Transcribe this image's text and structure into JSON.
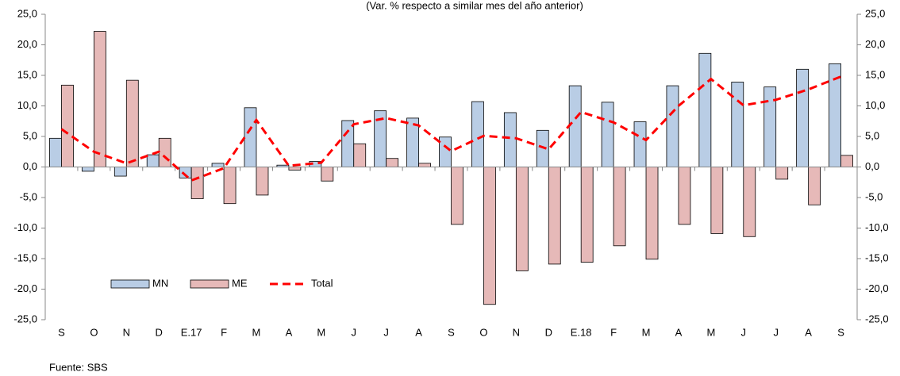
{
  "chart_data": {
    "type": "bar",
    "subtitle": "(Var. % respecto a similar mes del año anterior)",
    "source": "Fuente: SBS",
    "categories": [
      "S",
      "O",
      "N",
      "D",
      "E.17",
      "F",
      "M",
      "A",
      "M",
      "J",
      "J",
      "A",
      "S",
      "O",
      "N",
      "D",
      "E.18",
      "F",
      "M",
      "A",
      "M",
      "J",
      "J",
      "A",
      "S"
    ],
    "series": [
      {
        "name": "MN",
        "type": "bar",
        "color": "#b9cde5",
        "values": [
          4.7,
          -0.7,
          -1.5,
          2.0,
          -1.8,
          0.6,
          9.7,
          0.3,
          0.9,
          7.6,
          9.2,
          8.0,
          4.9,
          10.7,
          8.9,
          6.0,
          13.3,
          10.6,
          7.4,
          13.3,
          18.6,
          13.9,
          13.1,
          16.0,
          16.9
        ]
      },
      {
        "name": "ME",
        "type": "bar",
        "color": "#e6b9b8",
        "values": [
          13.4,
          22.2,
          14.2,
          4.7,
          -5.2,
          -6.0,
          -4.6,
          -0.5,
          -2.3,
          3.8,
          1.4,
          0.6,
          -9.4,
          -22.5,
          -17.0,
          -15.9,
          -15.6,
          -12.9,
          -15.1,
          -9.4,
          -10.9,
          -11.4,
          -2.0,
          -6.2,
          1.9
        ]
      },
      {
        "name": "Total",
        "type": "line",
        "color": "#ff0000",
        "values": [
          6.2,
          2.5,
          0.6,
          2.5,
          -2.2,
          -0.2,
          7.7,
          0.2,
          0.7,
          7.0,
          8.0,
          6.8,
          2.6,
          5.1,
          4.7,
          2.9,
          9.0,
          7.3,
          4.4,
          10.0,
          14.4,
          10.1,
          11.0,
          12.7,
          14.8
        ]
      }
    ],
    "ylim": [
      -25,
      25
    ],
    "yticks": [
      {
        "value": -25,
        "label": "-25,0"
      },
      {
        "value": -20,
        "label": "-20,0"
      },
      {
        "value": -15,
        "label": "-15,0"
      },
      {
        "value": -10,
        "label": "-10,0"
      },
      {
        "value": -5,
        "label": "-5,0"
      },
      {
        "value": 0,
        "label": "0,0"
      },
      {
        "value": 5,
        "label": "5,0"
      },
      {
        "value": 10,
        "label": "10,0"
      },
      {
        "value": 15,
        "label": "15,0"
      },
      {
        "value": 20,
        "label": "20,0"
      },
      {
        "value": 25,
        "label": "25,0"
      }
    ],
    "y2lim": [
      -25,
      25
    ],
    "y2ticks": [
      {
        "value": -25,
        "label": "-25,0"
      },
      {
        "value": -20,
        "label": "-20,0"
      },
      {
        "value": -15,
        "label": "-15,0"
      },
      {
        "value": -10,
        "label": "-10,0"
      },
      {
        "value": -5,
        "label": "-5,0"
      },
      {
        "value": 0,
        "label": "0,0"
      },
      {
        "value": 5,
        "label": "5,0"
      },
      {
        "value": 10,
        "label": "10,0"
      },
      {
        "value": 15,
        "label": "15,0"
      },
      {
        "value": 20,
        "label": "20,0"
      },
      {
        "value": 25,
        "label": "25,0"
      }
    ],
    "legend": "lower-left"
  }
}
